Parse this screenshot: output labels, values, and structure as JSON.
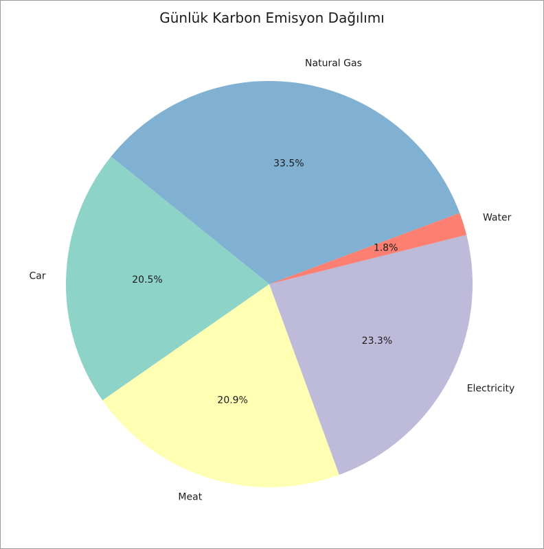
{
  "chart_data": {
    "type": "pie",
    "title": "Günlük Karbon Emisyon Dağılımı",
    "slices": [
      {
        "label": "Natural Gas",
        "percent": 33.5,
        "pct_label": "33.5%",
        "color": "#80b1d3"
      },
      {
        "label": "Car",
        "percent": 20.5,
        "pct_label": "20.5%",
        "color": "#8dd3c7"
      },
      {
        "label": "Meat",
        "percent": 20.9,
        "pct_label": "20.9%",
        "color": "#ffffb3"
      },
      {
        "label": "Electricity",
        "percent": 23.3,
        "pct_label": "23.3%",
        "color": "#bebada"
      },
      {
        "label": "Water",
        "percent": 1.8,
        "pct_label": "1.8%",
        "color": "#fb8072"
      }
    ],
    "start_angle_deg": 20.5,
    "direction": "counterclockwise",
    "legend": "none"
  }
}
